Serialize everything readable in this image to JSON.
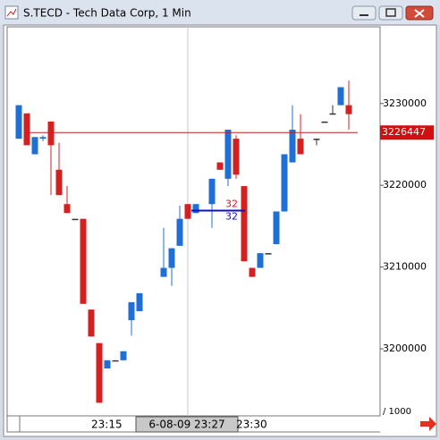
{
  "window": {
    "title": "S.TECD - Tech Data Corp, 1 Min"
  },
  "chart_data": {
    "type": "candlestick",
    "categories": [
      null,
      null,
      null,
      null,
      null,
      null,
      null,
      null,
      null,
      "23:15",
      null,
      null,
      null,
      null,
      null,
      null,
      null,
      null,
      null,
      null,
      null,
      null,
      null,
      null,
      null,
      null,
      null,
      "23:30",
      null,
      null,
      null,
      null,
      null,
      null,
      null,
      null,
      null,
      null,
      null,
      null,
      null,
      null
    ],
    "open": [
      3225700,
      3228800,
      3223800,
      3225700,
      3227800,
      3221900,
      3217700,
      3215900,
      3215900,
      3204800,
      3200700,
      3197600,
      3198600,
      3198600,
      3203500,
      3204600,
      null,
      null,
      3208800,
      3209900,
      3212600,
      3217700,
      3216600,
      null,
      3217700,
      3222800,
      3220800,
      3225700,
      3219900,
      3209900,
      3209900,
      3211700,
      3212800,
      3216800,
      3222800,
      3225700,
      null,
      3225700,
      3227800,
      3228800,
      3229800,
      3229800
    ],
    "high": [
      3229800,
      3228800,
      3225900,
      3226100,
      3227800,
      3225200,
      3219900,
      3215900,
      3215900,
      3204800,
      3200700,
      3198600,
      3198600,
      3199700,
      3205700,
      3206800,
      null,
      null,
      3214800,
      3212300,
      3217500,
      3217700,
      3217700,
      null,
      3220800,
      3222800,
      3226800,
      3226100,
      3219900,
      3209900,
      3211700,
      3211700,
      3216800,
      3223800,
      3229800,
      3228700,
      null,
      3225700,
      3227800,
      3229800,
      3232000,
      3232800
    ],
    "low": [
      3225700,
      3224900,
      3223800,
      3225400,
      3218800,
      3218800,
      3216600,
      3215900,
      3205500,
      3201500,
      3193400,
      3197600,
      3198600,
      3198600,
      3201600,
      3204600,
      null,
      null,
      3208800,
      3207700,
      3212600,
      3215900,
      3216600,
      null,
      3214800,
      3221900,
      3219900,
      3220800,
      3210700,
      3208800,
      3209900,
      3211700,
      3212800,
      3216800,
      3222800,
      3223800,
      null,
      3224900,
      3227800,
      3228800,
      3229800,
      3226800
    ],
    "close": [
      3229800,
      3224900,
      3225900,
      3225900,
      3224900,
      3218800,
      3216600,
      3215900,
      3205500,
      3201500,
      3193400,
      3198600,
      3198600,
      3199700,
      3205700,
      3206800,
      null,
      null,
      3209900,
      3212300,
      3215900,
      3215900,
      3217700,
      null,
      3220800,
      3221900,
      3226800,
      3221300,
      3210700,
      3208800,
      3211700,
      3211700,
      3216800,
      3223800,
      3226800,
      3223800,
      null,
      3225700,
      3227800,
      3228800,
      3232000,
      3228700
    ],
    "up_color": "#1f6fd6",
    "down_color": "#d42020",
    "ylim": [
      3191800,
      3239600
    ],
    "yticks": [
      3200000,
      3210000,
      3220000,
      3230000
    ],
    "current_price": 3226447,
    "cursor_label": "6-08-09 23:27",
    "order_line": {
      "value": 3216900,
      "labels": [
        "32",
        "32"
      ]
    },
    "scale_label": "/  1000"
  }
}
